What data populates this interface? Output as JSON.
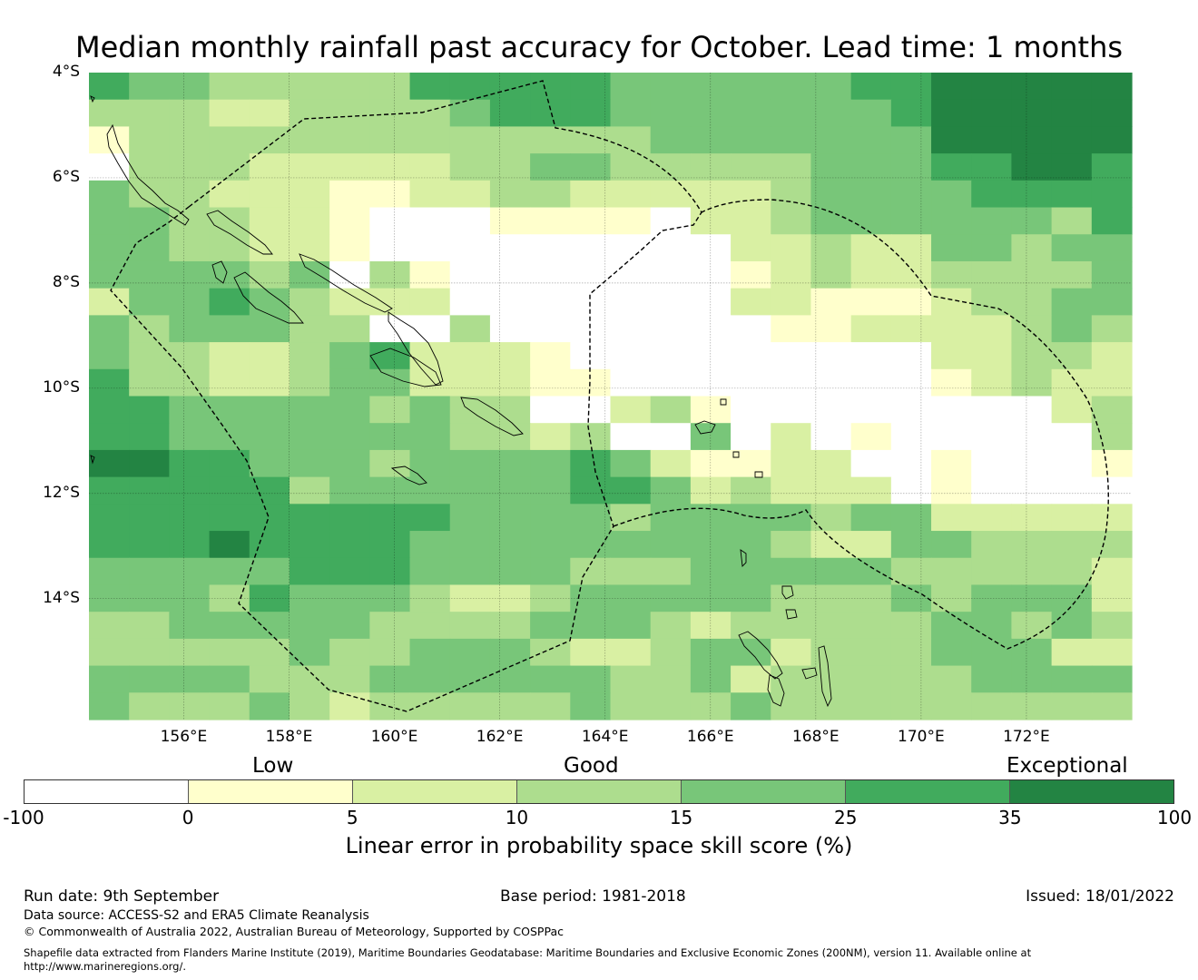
{
  "title": "Median monthly rainfall past accuracy for October. Lead time: 1 months",
  "map": {
    "lat_labels": [
      "4°S",
      "6°S",
      "8°S",
      "10°S",
      "12°S",
      "14°S"
    ],
    "lon_labels": [
      "156°E",
      "158°E",
      "160°E",
      "162°E",
      "164°E",
      "166°E",
      "168°E",
      "170°E",
      "172°E"
    ],
    "lon_range": [
      154.2,
      174.0
    ],
    "lat_range": [
      -16.3,
      -4.0
    ],
    "grid_lines": true,
    "level_colors": [
      "#ffffff",
      "#ffffcc",
      "#d9f0a3",
      "#addd8e",
      "#78c679",
      "#41ab5d",
      "#238443"
    ],
    "skill_grid": [
      "54433333555554444445566666",
      "33322333345554444444566666",
      "13333333333333444444466666",
      "03332222233443333344455665",
      "43322211223322222344445555",
      "44332210001111022344444435",
      "44332210000000002232244344",
      "44443403100000001232233334",
      "24454322200000002211123344",
      "43444330030000000112222343",
      "43322345222100000000022332",
      "53322344222110000000012322",
      "55444443433002310000000023",
      "55444444433230040201000003",
      "66554443444454211220010001",
      "55555344444455423222010000",
      "55555555544443444434422222",
      "55565555444444444322443333",
      "44444555444433344444333332",
      "44435444322344444333434442",
      "33444443333444323333344343",
      "33333433444322344233344422",
      "44443334444443342333334444",
      "43334323333343334333333333"
    ]
  },
  "colorbar": {
    "category_labels": [
      "Low",
      "Good",
      "Exceptional"
    ],
    "ticks": [
      "-100",
      "0",
      "5",
      "10",
      "15",
      "25",
      "35",
      "100"
    ],
    "title": "Linear error in probability space skill score (%)"
  },
  "footer": {
    "run_date": "Run date: 9th September",
    "base_period": "Base period: 1981-2018",
    "issued": "Issued: 18/01/2022",
    "data_source": "Data source: ACCESS-S2 and ERA5 Climate Reanalysis",
    "copyright": "© Commonwealth of Australia 2022, Australian Bureau of Meteorology, Supported by COSPPac",
    "shapefile_line1": "Shapefile data extracted from Flanders Marine Institute (2019), Maritime Boundaries Geodatabase: Maritime Boundaries and Exclusive Economic Zones (200NM), version 11. Available online at",
    "shapefile_line2": "http://www.marineregions.org/."
  }
}
